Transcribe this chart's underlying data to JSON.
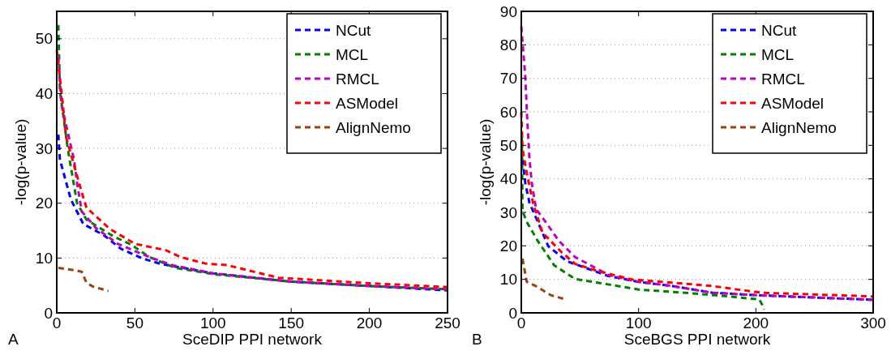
{
  "chart_data": [
    {
      "type": "line",
      "xlabel": "SceDIP PPI network",
      "ylabel": "-log(p-value)",
      "annotations": [
        "A"
      ],
      "xlim": [
        0,
        250
      ],
      "ylim": [
        0,
        55
      ],
      "xticks": [
        0,
        50,
        100,
        150,
        200,
        250
      ],
      "yticks": [
        0,
        10,
        20,
        30,
        40,
        50
      ],
      "grid": "y",
      "legend": "top right",
      "line_style": "dashed",
      "series": [
        {
          "name": "NCut",
          "color": "#0000ff",
          "x": [
            1,
            2,
            9,
            17,
            30,
            41,
            55,
            67,
            100,
            150,
            200,
            250
          ],
          "values": [
            32.5,
            28,
            20.7,
            16.2,
            14.2,
            11.7,
            9.9,
            8.9,
            7.2,
            5.7,
            4.9,
            4.1
          ]
        },
        {
          "name": "MCL",
          "color": "#008000",
          "x": [
            1,
            2,
            7,
            13,
            19,
            36,
            48,
            59,
            76,
            102,
            150,
            200,
            250
          ],
          "values": [
            52.5,
            40.6,
            30,
            20,
            17,
            14,
            12.4,
            10.2,
            8.2,
            7,
            5.7,
            4.9,
            4.3
          ]
        },
        {
          "name": "RMCL",
          "color": "#bf00bf",
          "x": [
            1,
            3,
            11,
            13,
            16,
            25,
            39,
            59,
            74,
            100,
            150,
            200,
            250
          ],
          "values": [
            46.7,
            38,
            28,
            23.7,
            18.5,
            15.5,
            12.6,
            10.2,
            8.7,
            7.2,
            5.7,
            4.9,
            4.3
          ]
        },
        {
          "name": "ASModel",
          "color": "#ff0000",
          "x": [
            0,
            4,
            6,
            13,
            16,
            19,
            34,
            50,
            70,
            79,
            95,
            109,
            142,
            200,
            250
          ],
          "values": [
            48,
            37.7,
            32,
            25,
            22,
            19.2,
            15.3,
            12.6,
            11.4,
            10.2,
            9,
            8.7,
            6.4,
            5.4,
            4.7
          ]
        },
        {
          "name": "AlignNemo",
          "color": "#a04010",
          "x": [
            1,
            11,
            16,
            19,
            23,
            33
          ],
          "values": [
            8.2,
            7.8,
            7.5,
            5.5,
            4.8,
            4.0
          ]
        }
      ]
    },
    {
      "type": "line",
      "xlabel": "SceBGS PPI network",
      "ylabel": "-log(p-value)",
      "annotations": [
        "B"
      ],
      "xlim": [
        0,
        300
      ],
      "ylim": [
        0,
        90
      ],
      "xticks": [
        0,
        100,
        200,
        300
      ],
      "yticks": [
        0,
        10,
        20,
        30,
        40,
        50,
        60,
        70,
        80,
        90
      ],
      "grid": "y",
      "legend": "top right",
      "line_style": "dashed",
      "series": [
        {
          "name": "NCut",
          "color": "#0000ff",
          "x": [
            1,
            3.5,
            7,
            15,
            23,
            39,
            55,
            74,
            99,
            129,
            163,
            205,
            300
          ],
          "values": [
            45.8,
            38.5,
            32.8,
            26.4,
            19.9,
            15.4,
            13.4,
            11,
            9.3,
            8,
            6,
            5.2,
            3.9
          ]
        },
        {
          "name": "MCL",
          "color": "#008000",
          "x": [
            0.5,
            1,
            4.6,
            14,
            28,
            46,
            74,
            101,
            140,
            174,
            203,
            206,
            207
          ],
          "values": [
            53,
            30.4,
            27.2,
            21.5,
            14.2,
            10.1,
            8.5,
            6.9,
            6,
            5,
            4,
            2,
            1
          ]
        },
        {
          "name": "RMCL",
          "color": "#bf00bf",
          "x": [
            0,
            3.5,
            5,
            7,
            9,
            12.6,
            21,
            32,
            46,
            57,
            74,
            99,
            129,
            163,
            205,
            300
          ],
          "values": [
            85.5,
            70,
            58,
            45.8,
            38.5,
            31,
            27,
            21.5,
            16.6,
            14.6,
            11.3,
            9.3,
            8,
            6,
            5.2,
            3.9
          ]
        },
        {
          "name": "ASModel",
          "color": "#ff0000",
          "x": [
            0,
            1,
            4.6,
            10,
            18,
            34,
            46,
            64,
            94,
            163,
            205,
            300
          ],
          "values": [
            60,
            49,
            41.8,
            32.8,
            24,
            18.2,
            14.6,
            12.6,
            10,
            8,
            6,
            4.9
          ]
        },
        {
          "name": "AlignNemo",
          "color": "#a04010",
          "x": [
            1,
            4.6,
            14,
            25,
            37
          ],
          "values": [
            16.2,
            9.3,
            7.7,
            5.3,
            4.1
          ]
        }
      ]
    }
  ]
}
